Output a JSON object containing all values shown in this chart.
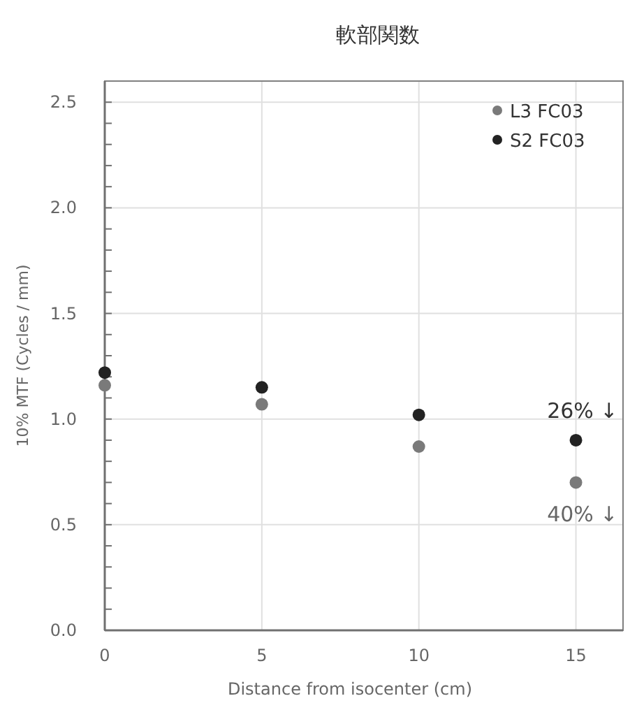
{
  "chart_data": {
    "type": "scatter",
    "title": "軟部関数",
    "xlabel": "Distance from isocenter (cm)",
    "ylabel": "10% MTF (Cycles / mm)",
    "x": [
      0,
      5,
      10,
      15
    ],
    "series": [
      {
        "name": "L3 FC03",
        "color": "#7a7a7a",
        "values": [
          1.16,
          1.07,
          0.87,
          0.7
        ]
      },
      {
        "name": "S2 FC03",
        "color": "#222222",
        "values": [
          1.22,
          1.15,
          1.02,
          0.9
        ]
      }
    ],
    "xlim": [
      0,
      16.5
    ],
    "xticks": [
      0,
      5,
      10,
      15
    ],
    "ylim": [
      0,
      2.6
    ],
    "yticks": [
      {
        "value": 0,
        "label": "0.0"
      },
      {
        "value": 0.1,
        "label": null
      },
      {
        "value": 0.2,
        "label": null
      },
      {
        "value": 0.3,
        "label": null
      },
      {
        "value": 0.4,
        "label": null
      },
      {
        "value": 0.5,
        "label": "0.5"
      },
      {
        "value": 0.6,
        "label": null
      },
      {
        "value": 0.7,
        "label": null
      },
      {
        "value": 0.8,
        "label": null
      },
      {
        "value": 0.9,
        "label": null
      },
      {
        "value": 1.0,
        "label": "1.0"
      },
      {
        "value": 1.1,
        "label": null
      },
      {
        "value": 1.2,
        "label": null
      },
      {
        "value": 1.3,
        "label": null
      },
      {
        "value": 1.4,
        "label": null
      },
      {
        "value": 1.5,
        "label": "1.5"
      },
      {
        "value": 1.6,
        "label": null
      },
      {
        "value": 1.7,
        "label": null
      },
      {
        "value": 1.8,
        "label": null
      },
      {
        "value": 1.9,
        "label": null
      },
      {
        "value": 2.0,
        "label": "2.0"
      },
      {
        "value": 2.1,
        "label": null
      },
      {
        "value": 2.2,
        "label": null
      },
      {
        "value": 2.3,
        "label": null
      },
      {
        "value": 2.4,
        "label": null
      },
      {
        "value": 2.5,
        "label": "2.5"
      }
    ],
    "annotations": [
      {
        "text": "26% ↓",
        "x": 15,
        "y": 0.9
      },
      {
        "text": "40% ↓",
        "x": 15,
        "y": 0.7
      }
    ],
    "grid": true,
    "legend": "top right",
    "marker": "circle"
  }
}
